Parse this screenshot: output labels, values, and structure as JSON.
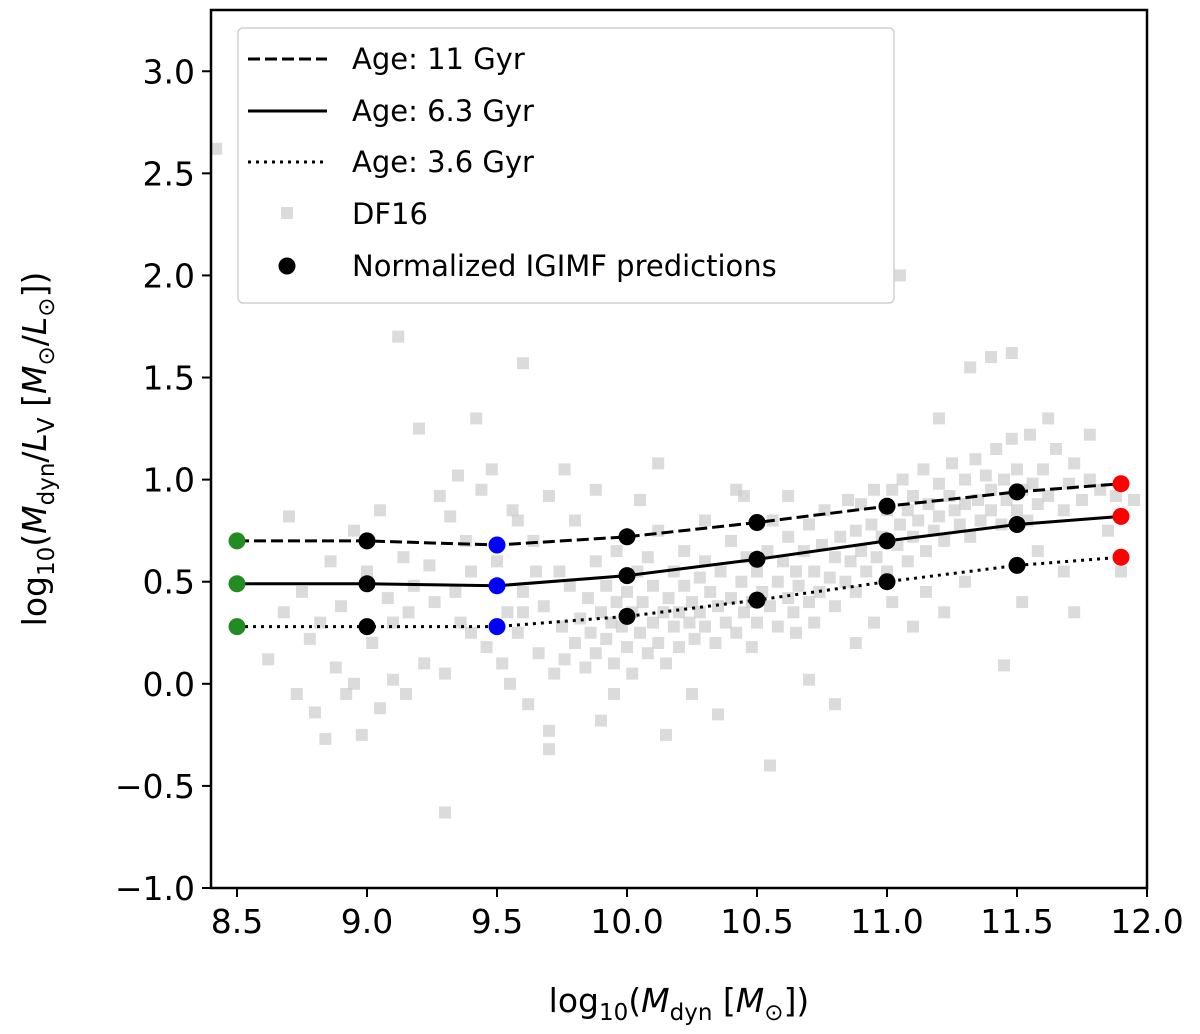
{
  "chart_data": {
    "type": "scatter",
    "xlabel": {
      "prefix": "log",
      "sub": "10",
      "open": "(",
      "var": "M",
      "varsub": "dyn",
      "unit": " [",
      "unitvar": "M",
      "unitsub": "⊙",
      "close": "])"
    },
    "ylabel": {
      "prefix": "log",
      "sub": "10",
      "open": "(",
      "var": "M",
      "varsub": "dyn",
      "slash": "/",
      "var2": "L",
      "var2sub": "V",
      "unit": " [",
      "unitvar": "M",
      "unitsub": "⊙",
      "unitslash": "/",
      "unitvar2": "L",
      "unitsub2": "⊙",
      "close": "])"
    },
    "xlim": [
      8.4,
      12.0
    ],
    "ylim": [
      -1.0,
      3.3
    ],
    "xticks": [
      "8.5",
      "9.0",
      "9.5",
      "10.0",
      "10.5",
      "11.0",
      "11.5",
      "12.0"
    ],
    "yticks": [
      "−1.0",
      "−0.5",
      "0.0",
      "0.5",
      "1.0",
      "1.5",
      "2.0",
      "2.5",
      "3.0"
    ],
    "lines": [
      {
        "name": "Age: 11 Gyr",
        "style": "dashed",
        "x": [
          8.5,
          9.0,
          9.5,
          10.0,
          10.5,
          11.0,
          11.5,
          11.9
        ],
        "y": [
          0.7,
          0.7,
          0.68,
          0.72,
          0.79,
          0.87,
          0.94,
          0.98
        ]
      },
      {
        "name": "Age: 6.3 Gyr",
        "style": "solid",
        "x": [
          8.5,
          9.0,
          9.5,
          10.0,
          10.5,
          11.0,
          11.5,
          11.9
        ],
        "y": [
          0.49,
          0.49,
          0.48,
          0.53,
          0.61,
          0.7,
          0.78,
          0.82
        ]
      },
      {
        "name": "Age: 3.6 Gyr",
        "style": "dotted",
        "x": [
          8.5,
          9.0,
          9.5,
          10.0,
          10.5,
          11.0,
          11.5,
          11.9
        ],
        "y": [
          0.28,
          0.28,
          0.28,
          0.33,
          0.41,
          0.5,
          0.58,
          0.62
        ]
      }
    ],
    "point_colors": [
      "#228B22",
      "#000000",
      "#0000ff",
      "#000000",
      "#000000",
      "#000000",
      "#000000",
      "#ff0000"
    ],
    "legend": {
      "position": "top-left",
      "entries": [
        "Age: 11 Gyr",
        "Age: 6.3 Gyr",
        "Age: 3.6 Gyr",
        "DF16",
        "Normalized IGIMF predictions"
      ]
    },
    "df16": {
      "name": "DF16",
      "color": "#cccccc",
      "points": [
        [
          8.42,
          2.62
        ],
        [
          8.62,
          0.12
        ],
        [
          8.68,
          0.35
        ],
        [
          8.7,
          0.82
        ],
        [
          8.73,
          -0.05
        ],
        [
          8.75,
          0.45
        ],
        [
          8.78,
          0.22
        ],
        [
          8.8,
          -0.14
        ],
        [
          8.82,
          0.3
        ],
        [
          8.84,
          -0.27
        ],
        [
          8.86,
          0.6
        ],
        [
          8.88,
          0.08
        ],
        [
          8.9,
          0.38
        ],
        [
          8.92,
          -0.05
        ],
        [
          8.95,
          0.75
        ],
        [
          8.98,
          -0.25
        ],
        [
          9.0,
          0.55
        ],
        [
          9.02,
          0.2
        ],
        [
          9.05,
          0.85
        ],
        [
          9.08,
          0.42
        ],
        [
          9.1,
          0.02
        ],
        [
          9.12,
          1.7
        ],
        [
          9.14,
          0.62
        ],
        [
          9.16,
          0.35
        ],
        [
          9.18,
          0.48
        ],
        [
          9.2,
          1.25
        ],
        [
          9.22,
          0.1
        ],
        [
          9.24,
          0.58
        ],
        [
          9.26,
          0.4
        ],
        [
          9.28,
          0.92
        ],
        [
          9.3,
          -0.63
        ],
        [
          9.32,
          0.82
        ],
        [
          9.34,
          0.45
        ],
        [
          9.36,
          0.3
        ],
        [
          9.38,
          0.7
        ],
        [
          9.4,
          0.55
        ],
        [
          9.42,
          1.3
        ],
        [
          9.44,
          0.95
        ],
        [
          9.46,
          0.18
        ],
        [
          9.48,
          1.05
        ],
        [
          9.5,
          0.6
        ],
        [
          9.52,
          0.1
        ],
        [
          9.54,
          0.35
        ],
        [
          9.55,
          0.0
        ],
        [
          9.56,
          0.85
        ],
        [
          9.58,
          0.25
        ],
        [
          9.6,
          1.57
        ],
        [
          9.6,
          0.45
        ],
        [
          9.62,
          -0.1
        ],
        [
          9.64,
          0.7
        ],
        [
          9.66,
          0.15
        ],
        [
          9.68,
          0.38
        ],
        [
          9.7,
          -0.23
        ],
        [
          9.7,
          0.92
        ],
        [
          9.72,
          0.05
        ],
        [
          9.74,
          0.55
        ],
        [
          9.75,
          0.28
        ],
        [
          9.76,
          0.12
        ],
        [
          9.78,
          0.48
        ],
        [
          9.8,
          0.2
        ],
        [
          9.8,
          0.8
        ],
        [
          9.82,
          0.32
        ],
        [
          9.84,
          0.08
        ],
        [
          9.85,
          0.42
        ],
        [
          9.86,
          0.25
        ],
        [
          9.88,
          0.6
        ],
        [
          9.88,
          0.15
        ],
        [
          9.9,
          0.35
        ],
        [
          9.9,
          -0.18
        ],
        [
          9.92,
          0.22
        ],
        [
          9.92,
          0.48
        ],
        [
          9.94,
          0.3
        ],
        [
          9.95,
          0.1
        ],
        [
          9.96,
          0.4
        ],
        [
          9.96,
          0.65
        ],
        [
          9.98,
          0.28
        ],
        [
          10.0,
          0.18
        ],
        [
          10.0,
          0.45
        ],
        [
          10.02,
          0.35
        ],
        [
          10.02,
          0.05
        ],
        [
          10.04,
          0.55
        ],
        [
          10.05,
          0.25
        ],
        [
          10.06,
          0.4
        ],
        [
          10.08,
          0.15
        ],
        [
          10.08,
          0.62
        ],
        [
          10.1,
          0.3
        ],
        [
          10.1,
          0.48
        ],
        [
          10.12,
          0.2
        ],
        [
          10.12,
          0.75
        ],
        [
          10.14,
          0.35
        ],
        [
          10.15,
          0.1
        ],
        [
          10.16,
          0.42
        ],
        [
          10.18,
          0.28
        ],
        [
          10.18,
          0.55
        ],
        [
          10.2,
          0.35
        ],
        [
          10.2,
          0.18
        ],
        [
          10.22,
          0.48
        ],
        [
          10.22,
          0.65
        ],
        [
          10.24,
          0.3
        ],
        [
          10.25,
          0.4
        ],
        [
          10.26,
          0.22
        ],
        [
          10.28,
          0.52
        ],
        [
          10.28,
          0.35
        ],
        [
          10.3,
          0.28
        ],
        [
          10.3,
          0.6
        ],
        [
          10.32,
          0.45
        ],
        [
          10.34,
          0.2
        ],
        [
          10.35,
          0.38
        ],
        [
          10.36,
          0.55
        ],
        [
          10.38,
          0.3
        ],
        [
          10.4,
          0.42
        ],
        [
          10.4,
          0.7
        ],
        [
          10.42,
          0.25
        ],
        [
          10.44,
          0.5
        ],
        [
          10.45,
          0.35
        ],
        [
          10.46,
          0.62
        ],
        [
          10.48,
          0.4
        ],
        [
          10.48,
          0.18
        ],
        [
          10.5,
          0.55
        ],
        [
          10.5,
          0.3
        ],
        [
          10.52,
          0.45
        ],
        [
          10.54,
          0.65
        ],
        [
          10.55,
          0.38
        ],
        [
          10.56,
          0.8
        ],
        [
          10.58,
          0.5
        ],
        [
          10.58,
          0.28
        ],
        [
          10.6,
          0.6
        ],
        [
          10.62,
          0.42
        ],
        [
          10.62,
          0.72
        ],
        [
          10.64,
          0.35
        ],
        [
          10.65,
          0.55
        ],
        [
          10.66,
          0.48
        ],
        [
          10.68,
          0.65
        ],
        [
          10.7,
          0.4
        ],
        [
          10.7,
          0.78
        ],
        [
          10.72,
          0.55
        ],
        [
          10.74,
          0.45
        ],
        [
          10.75,
          0.68
        ],
        [
          10.76,
          0.85
        ],
        [
          10.78,
          0.52
        ],
        [
          10.8,
          0.62
        ],
        [
          10.8,
          0.38
        ],
        [
          10.82,
          0.72
        ],
        [
          10.84,
          0.5
        ],
        [
          10.85,
          0.9
        ],
        [
          10.86,
          0.6
        ],
        [
          10.88,
          0.75
        ],
        [
          10.88,
          0.45
        ],
        [
          10.9,
          0.65
        ],
        [
          10.9,
          0.88
        ],
        [
          10.92,
          0.55
        ],
        [
          10.94,
          0.78
        ],
        [
          10.95,
          0.95
        ],
        [
          10.96,
          0.62
        ],
        [
          10.98,
          0.72
        ],
        [
          11.0,
          0.85
        ],
        [
          11.0,
          0.55
        ],
        [
          11.02,
          0.95
        ],
        [
          11.04,
          0.68
        ],
        [
          11.05,
          0.78
        ],
        [
          11.06,
          1.0
        ],
        [
          11.08,
          0.6
        ],
        [
          11.08,
          0.85
        ],
        [
          11.1,
          0.72
        ],
        [
          11.1,
          0.92
        ],
        [
          11.12,
          0.8
        ],
        [
          11.14,
          1.05
        ],
        [
          11.15,
          0.65
        ],
        [
          11.16,
          0.88
        ],
        [
          11.18,
          0.75
        ],
        [
          11.2,
          0.98
        ],
        [
          11.2,
          0.82
        ],
        [
          11.22,
          0.7
        ],
        [
          11.24,
          0.92
        ],
        [
          11.25,
          1.08
        ],
        [
          11.26,
          0.85
        ],
        [
          11.28,
          0.78
        ],
        [
          11.3,
          1.0
        ],
        [
          11.3,
          0.88
        ],
        [
          11.32,
          0.72
        ],
        [
          11.34,
          1.1
        ],
        [
          11.35,
          0.9
        ],
        [
          11.36,
          0.8
        ],
        [
          11.38,
          1.02
        ],
        [
          11.4,
          0.85
        ],
        [
          11.4,
          0.95
        ],
        [
          11.42,
          1.15
        ],
        [
          11.44,
          0.78
        ],
        [
          11.45,
          1.0
        ],
        [
          11.46,
          0.9
        ],
        [
          11.48,
          1.2
        ],
        [
          11.5,
          0.85
        ],
        [
          11.5,
          1.05
        ],
        [
          11.52,
          0.95
        ],
        [
          11.54,
          0.8
        ],
        [
          11.55,
          1.22
        ],
        [
          11.56,
          0.98
        ],
        [
          11.58,
          0.88
        ],
        [
          11.6,
          1.05
        ],
        [
          11.62,
          0.92
        ],
        [
          11.65,
          1.15
        ],
        [
          11.68,
          0.85
        ],
        [
          11.7,
          0.98
        ],
        [
          11.72,
          1.08
        ],
        [
          11.75,
          0.9
        ],
        [
          11.78,
          1.0
        ],
        [
          11.82,
          0.95
        ],
        [
          11.88,
          0.92
        ],
        [
          11.95,
          0.9
        ],
        [
          9.76,
          1.05
        ],
        [
          10.05,
          0.9
        ],
        [
          10.12,
          1.08
        ],
        [
          10.3,
          0.8
        ],
        [
          10.45,
          0.92
        ],
        [
          10.65,
          0.25
        ],
        [
          10.7,
          0.02
        ],
        [
          10.72,
          0.3
        ],
        [
          10.8,
          -0.1
        ],
        [
          10.88,
          0.2
        ],
        [
          10.95,
          0.3
        ],
        [
          11.02,
          0.4
        ],
        [
          11.1,
          0.28
        ],
        [
          11.15,
          0.45
        ],
        [
          11.2,
          1.3
        ],
        [
          11.22,
          0.35
        ],
        [
          11.3,
          0.5
        ],
        [
          11.32,
          1.55
        ],
        [
          11.4,
          1.6
        ],
        [
          11.45,
          0.09
        ],
        [
          11.48,
          1.62
        ],
        [
          11.52,
          0.4
        ],
        [
          11.58,
          0.65
        ],
        [
          11.62,
          1.3
        ],
        [
          11.68,
          0.55
        ],
        [
          11.72,
          0.35
        ],
        [
          11.78,
          1.22
        ],
        [
          11.85,
          0.75
        ],
        [
          11.9,
          0.55
        ],
        [
          11.05,
          2.0
        ],
        [
          9.88,
          0.95
        ],
        [
          10.35,
          -0.15
        ],
        [
          10.25,
          -0.05
        ],
        [
          9.95,
          -0.05
        ],
        [
          10.55,
          -0.4
        ],
        [
          10.15,
          -0.25
        ],
        [
          9.7,
          -0.32
        ],
        [
          10.42,
          0.95
        ],
        [
          10.62,
          0.92
        ],
        [
          9.3,
          0.05
        ],
        [
          9.05,
          -0.12
        ],
        [
          8.95,
          0.0
        ],
        [
          9.4,
          0.25
        ],
        [
          9.15,
          -0.05
        ],
        [
          9.35,
          1.02
        ],
        [
          9.6,
          0.35
        ],
        [
          9.65,
          0.55
        ],
        [
          9.58,
          0.8
        ],
        [
          9.1,
          0.3
        ]
      ]
    }
  }
}
